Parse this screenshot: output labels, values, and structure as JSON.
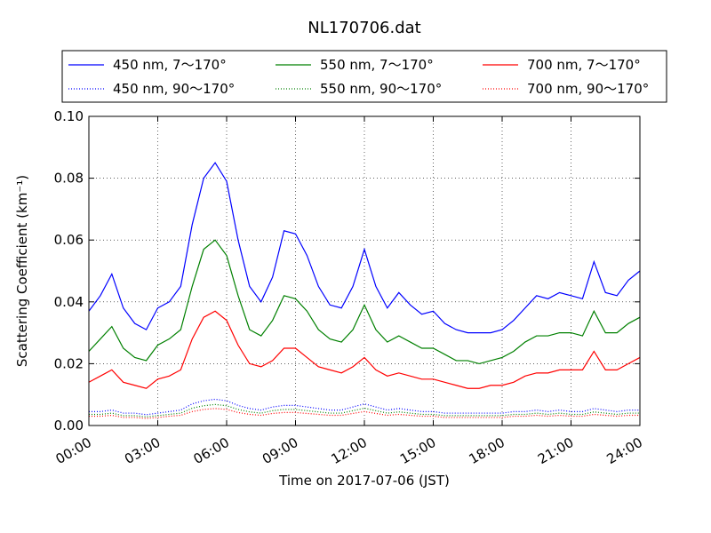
{
  "chart_data": {
    "type": "line",
    "title": "NL170706.dat",
    "xlabel": "Time on 2017-07-06 (JST)",
    "ylabel": "Scattering Coefficient (km⁻¹)",
    "x": [
      "00:00",
      "00:30",
      "01:00",
      "01:30",
      "02:00",
      "02:30",
      "03:00",
      "03:30",
      "04:00",
      "04:30",
      "05:00",
      "05:30",
      "06:00",
      "06:30",
      "07:00",
      "07:30",
      "08:00",
      "08:30",
      "09:00",
      "09:30",
      "10:00",
      "10:30",
      "11:00",
      "11:30",
      "12:00",
      "12:30",
      "13:00",
      "13:30",
      "14:00",
      "14:30",
      "15:00",
      "15:30",
      "16:00",
      "16:30",
      "17:00",
      "17:30",
      "18:00",
      "18:30",
      "19:00",
      "19:30",
      "20:00",
      "20:30",
      "21:00",
      "21:30",
      "22:00",
      "22:30",
      "23:00",
      "23:30",
      "24:00"
    ],
    "xlim": [
      "00:00",
      "24:00"
    ],
    "xticks": [
      "00:00",
      "03:00",
      "06:00",
      "09:00",
      "12:00",
      "15:00",
      "18:00",
      "21:00",
      "24:00"
    ],
    "ylim": [
      0,
      0.1
    ],
    "yticks": [
      {
        "value": 0,
        "label": "0.00"
      },
      {
        "value": 0.02,
        "label": "0.02"
      },
      {
        "value": 0.04,
        "label": "0.04"
      },
      {
        "value": 0.06,
        "label": "0.06"
      },
      {
        "value": 0.08,
        "label": "0.08"
      },
      {
        "value": 0.1,
        "label": "0.10"
      }
    ],
    "grid": true,
    "legend": "top",
    "series": [
      {
        "name": "450 nm, 7～170°",
        "color": "#0000ff",
        "linestyle": "solid",
        "values": [
          0.037,
          0.042,
          0.049,
          0.038,
          0.033,
          0.031,
          0.038,
          0.04,
          0.045,
          0.065,
          0.08,
          0.085,
          0.079,
          0.06,
          0.045,
          0.04,
          0.048,
          0.063,
          0.062,
          0.055,
          0.045,
          0.039,
          0.038,
          0.045,
          0.057,
          0.045,
          0.038,
          0.043,
          0.039,
          0.036,
          0.037,
          0.033,
          0.031,
          0.03,
          0.03,
          0.03,
          0.031,
          0.034,
          0.038,
          0.042,
          0.041,
          0.043,
          0.042,
          0.041,
          0.053,
          0.043,
          0.042,
          0.047,
          0.05
        ]
      },
      {
        "name": "450 nm, 90～170°",
        "color": "#0000ff",
        "linestyle": "dotted",
        "values": [
          0.0045,
          0.0045,
          0.005,
          0.004,
          0.004,
          0.0035,
          0.004,
          0.0045,
          0.005,
          0.007,
          0.008,
          0.0085,
          0.008,
          0.0065,
          0.0055,
          0.005,
          0.006,
          0.0065,
          0.0065,
          0.006,
          0.0055,
          0.005,
          0.005,
          0.006,
          0.007,
          0.006,
          0.005,
          0.0055,
          0.005,
          0.0045,
          0.0045,
          0.004,
          0.004,
          0.004,
          0.004,
          0.004,
          0.004,
          0.0045,
          0.0045,
          0.005,
          0.0045,
          0.005,
          0.0045,
          0.0045,
          0.0055,
          0.005,
          0.0045,
          0.005,
          0.005
        ]
      },
      {
        "name": "550 nm, 7～170°",
        "color": "#008000",
        "linestyle": "solid",
        "values": [
          0.024,
          0.028,
          0.032,
          0.025,
          0.022,
          0.021,
          0.026,
          0.028,
          0.031,
          0.045,
          0.057,
          0.06,
          0.055,
          0.042,
          0.031,
          0.029,
          0.034,
          0.042,
          0.041,
          0.037,
          0.031,
          0.028,
          0.027,
          0.031,
          0.039,
          0.031,
          0.027,
          0.029,
          0.027,
          0.025,
          0.025,
          0.023,
          0.021,
          0.021,
          0.02,
          0.021,
          0.022,
          0.024,
          0.027,
          0.029,
          0.029,
          0.03,
          0.03,
          0.029,
          0.037,
          0.03,
          0.03,
          0.033,
          0.035
        ]
      },
      {
        "name": "550 nm, 90～170°",
        "color": "#008000",
        "linestyle": "dotted",
        "values": [
          0.0036,
          0.0036,
          0.004,
          0.0032,
          0.0032,
          0.0028,
          0.0032,
          0.0036,
          0.004,
          0.0056,
          0.0064,
          0.0068,
          0.0064,
          0.0052,
          0.0044,
          0.004,
          0.0048,
          0.0052,
          0.0052,
          0.0048,
          0.0044,
          0.004,
          0.004,
          0.0048,
          0.0056,
          0.0048,
          0.004,
          0.0044,
          0.004,
          0.0036,
          0.0036,
          0.0032,
          0.0032,
          0.0032,
          0.0032,
          0.0032,
          0.0032,
          0.0036,
          0.0036,
          0.004,
          0.0036,
          0.004,
          0.0036,
          0.0036,
          0.0044,
          0.004,
          0.0036,
          0.004,
          0.004
        ]
      },
      {
        "name": "700 nm, 7～170°",
        "color": "#ff0000",
        "linestyle": "solid",
        "values": [
          0.014,
          0.016,
          0.018,
          0.014,
          0.013,
          0.012,
          0.015,
          0.016,
          0.018,
          0.028,
          0.035,
          0.037,
          0.034,
          0.026,
          0.02,
          0.019,
          0.021,
          0.025,
          0.025,
          0.022,
          0.019,
          0.018,
          0.017,
          0.019,
          0.022,
          0.018,
          0.016,
          0.017,
          0.016,
          0.015,
          0.015,
          0.014,
          0.013,
          0.012,
          0.012,
          0.013,
          0.013,
          0.014,
          0.016,
          0.017,
          0.017,
          0.018,
          0.018,
          0.018,
          0.024,
          0.018,
          0.018,
          0.02,
          0.022
        ]
      },
      {
        "name": "700 nm, 90～170°",
        "color": "#ff0000",
        "linestyle": "dotted",
        "values": [
          0.003,
          0.003,
          0.0033,
          0.0026,
          0.0026,
          0.0023,
          0.0026,
          0.003,
          0.0033,
          0.0045,
          0.0052,
          0.0055,
          0.0052,
          0.0042,
          0.0036,
          0.0033,
          0.0039,
          0.0042,
          0.0042,
          0.0039,
          0.0036,
          0.0033,
          0.0033,
          0.0039,
          0.0045,
          0.0039,
          0.0033,
          0.0036,
          0.0033,
          0.003,
          0.003,
          0.0026,
          0.0026,
          0.0026,
          0.0026,
          0.0026,
          0.0026,
          0.003,
          0.003,
          0.0033,
          0.003,
          0.0033,
          0.003,
          0.003,
          0.0036,
          0.0033,
          0.003,
          0.0033,
          0.0033
        ]
      }
    ]
  }
}
